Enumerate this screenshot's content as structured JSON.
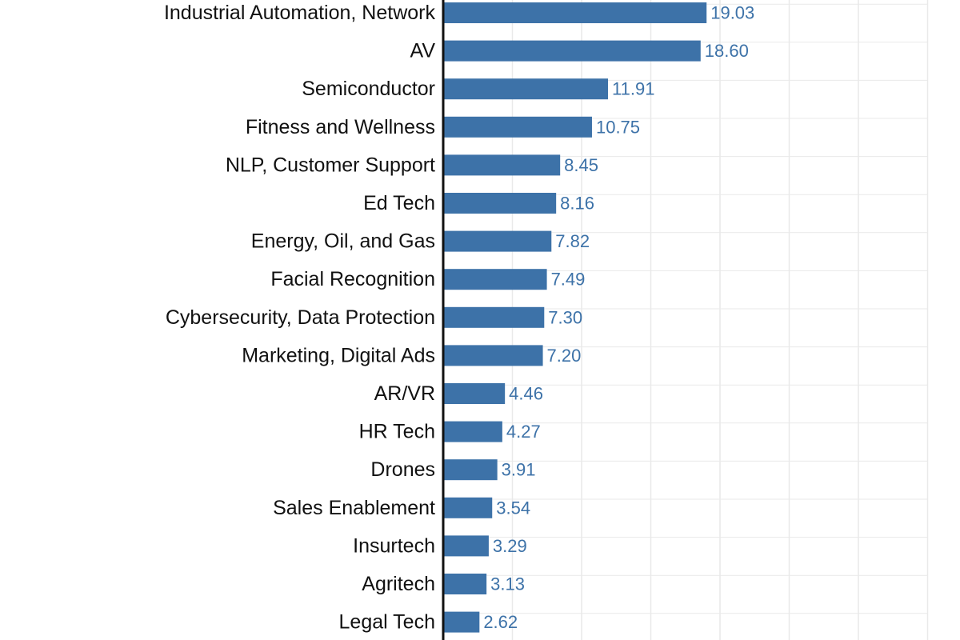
{
  "chart_data": {
    "type": "bar",
    "orientation": "horizontal",
    "categories": [
      "Industrial Automation, Network",
      "AV",
      "Semiconductor",
      "Fitness and Wellness",
      "NLP, Customer Support",
      "Ed Tech",
      "Energy, Oil, and Gas",
      "Facial Recognition",
      "Cybersecurity, Data Protection",
      "Marketing, Digital Ads",
      "AR/VR",
      "HR Tech",
      "Drones",
      "Sales Enablement",
      "Insurtech",
      "Agritech",
      "Legal Tech"
    ],
    "values": [
      19.03,
      18.6,
      11.91,
      10.75,
      8.45,
      8.16,
      7.82,
      7.49,
      7.3,
      7.2,
      4.46,
      4.27,
      3.91,
      3.54,
      3.29,
      3.13,
      2.62
    ],
    "value_labels": [
      "19.03",
      "18.60",
      "11.91",
      "10.75",
      "8.45",
      "8.16",
      "7.82",
      "7.49",
      "7.30",
      "7.20",
      "4.46",
      "4.27",
      "3.91",
      "3.54",
      "3.29",
      "3.13",
      "2.62"
    ],
    "grid": true,
    "xlim": [
      0,
      35
    ],
    "colors": {
      "bar": "#3d72a8",
      "value_label": "#3d72a8",
      "axis": "#111111",
      "grid": "#e9e9e9"
    }
  }
}
